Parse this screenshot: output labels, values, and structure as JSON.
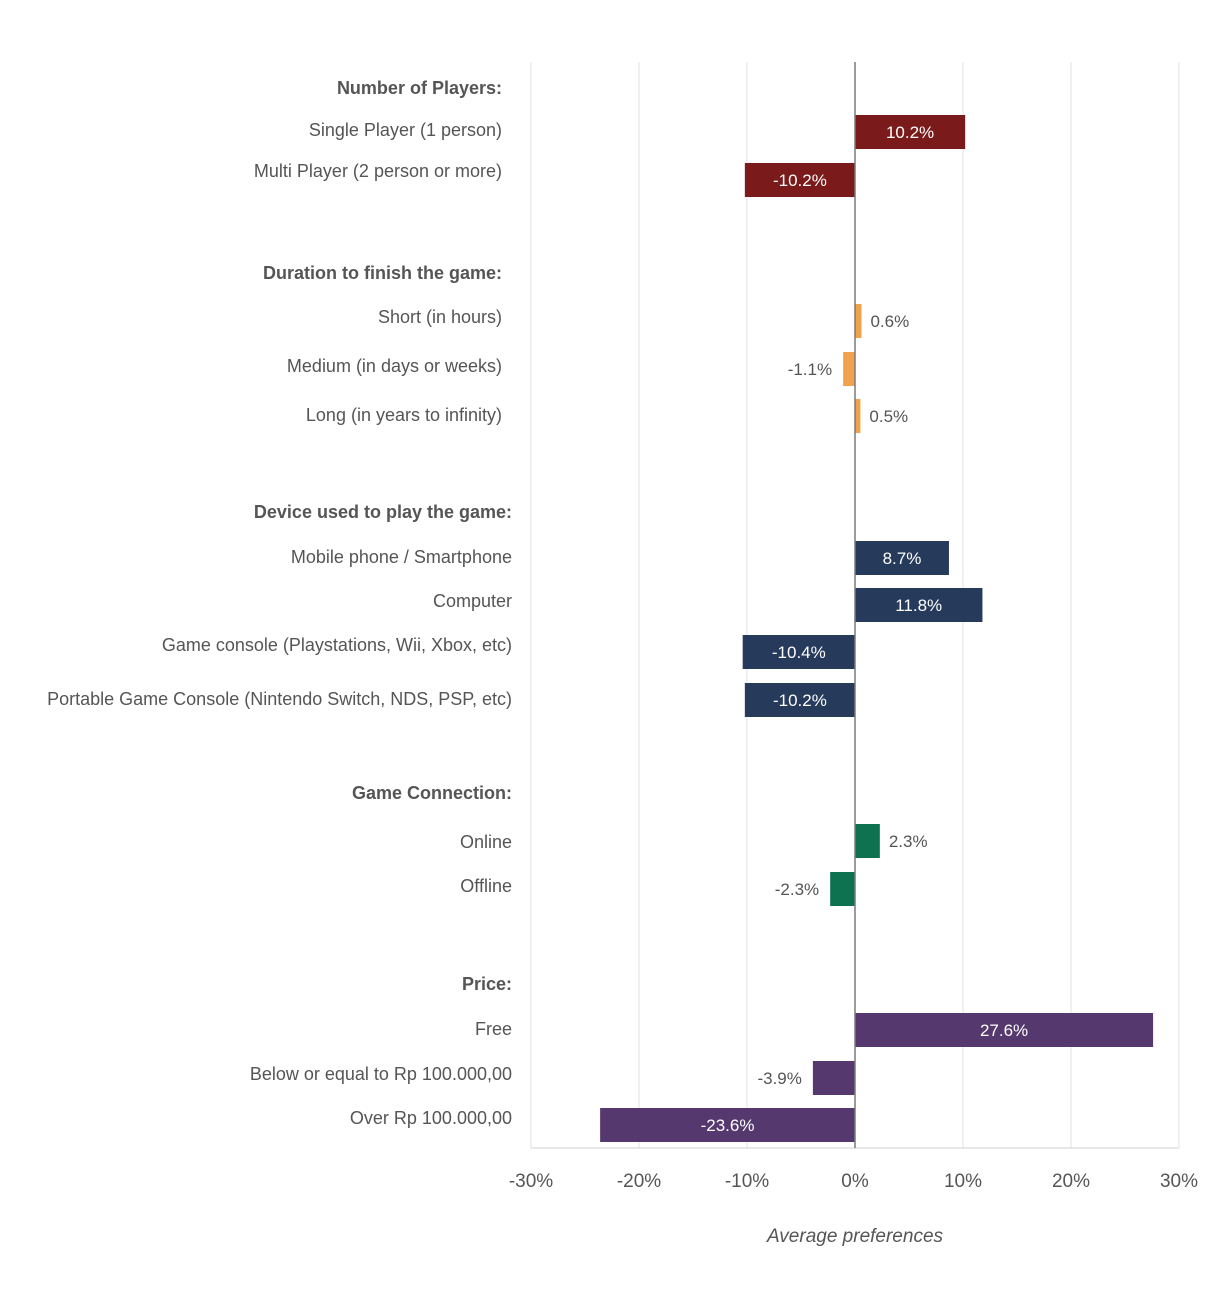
{
  "chart_data": {
    "type": "bar",
    "orientation": "horizontal",
    "xlabel": "Average preferences",
    "xlim": [
      -30,
      30
    ],
    "x_ticks": [
      "-30%",
      "-20%",
      "-10%",
      "0%",
      "10%",
      "20%",
      "30%"
    ],
    "grid": true,
    "legend": "none",
    "groups": [
      {
        "heading": "Number of Players:",
        "color": "#7a1a1a",
        "items": [
          {
            "label": "Single Player (1 person)",
            "value": 10.2,
            "display": "10.2%"
          },
          {
            "label": "Multi Player (2 person or more)",
            "value": -10.2,
            "display": "-10.2%"
          }
        ]
      },
      {
        "heading": "Duration to finish the game:",
        "color": "#f2a24a",
        "items": [
          {
            "label": "Short (in hours)",
            "value": 0.6,
            "display": "0.6%"
          },
          {
            "label": "Medium (in days or weeks)",
            "value": -1.1,
            "display": "-1.1%"
          },
          {
            "label": "Long (in years to infinity)",
            "value": 0.5,
            "display": "0.5%"
          }
        ]
      },
      {
        "heading": "Device used to play the game:",
        "color": "#263a5c",
        "items": [
          {
            "label": "Mobile phone / Smartphone",
            "value": 8.7,
            "display": "8.7%"
          },
          {
            "label": "Computer",
            "value": 11.8,
            "display": "11.8%"
          },
          {
            "label": "Game console (Playstations, Wii, Xbox, etc)",
            "value": -10.4,
            "display": "-10.4%"
          },
          {
            "label": "Portable Game Console (Nintendo Switch, NDS, PSP, etc)",
            "value": -10.2,
            "display": "-10.2%"
          }
        ]
      },
      {
        "heading": "Game Connection:",
        "color": "#0e7150",
        "items": [
          {
            "label": "Online",
            "value": 2.3,
            "display": "2.3%"
          },
          {
            "label": "Offline",
            "value": -2.3,
            "display": "-2.3%"
          }
        ]
      },
      {
        "heading": "Price:",
        "color": "#55396e",
        "items": [
          {
            "label": "Free",
            "value": 27.6,
            "display": "27.6%"
          },
          {
            "label": "Below or equal to Rp 100.000,00",
            "value": -3.9,
            "display": "-3.9%"
          },
          {
            "label": "Over Rp 100.000,00",
            "value": -23.6,
            "display": "-23.6%"
          }
        ]
      }
    ]
  }
}
